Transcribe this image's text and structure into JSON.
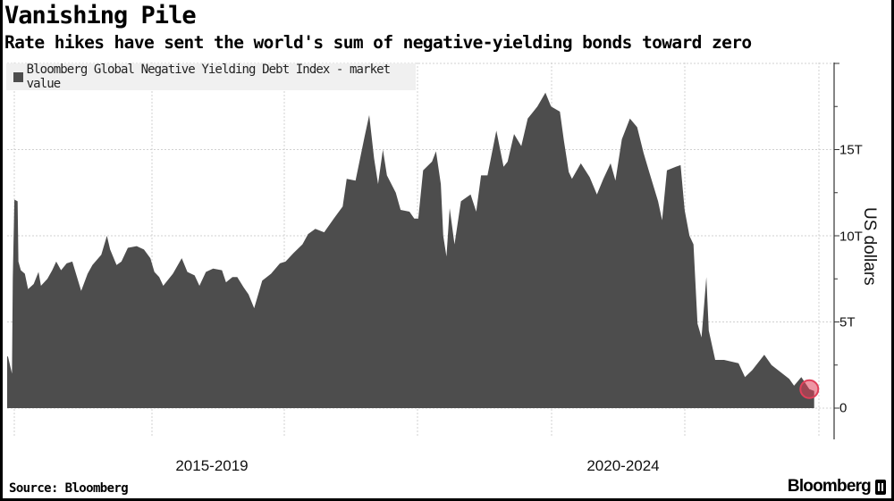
{
  "title": "Vanishing Pile",
  "subtitle": "Rate hikes have sent the world's sum of negative-yielding bonds toward zero",
  "source": "Source: Bloomberg",
  "logo_text": "Bloomberg",
  "chart_data": {
    "type": "area",
    "title": "Vanishing Pile",
    "subtitle": "Rate hikes have sent the world's sum of negative-yielding bonds toward zero",
    "ylabel": "US dollars",
    "xlabel": "",
    "x_tick_labels": [
      "2015-2019",
      "2020-2024"
    ],
    "y_ticks": [
      0,
      5,
      10,
      15
    ],
    "y_tick_labels": [
      "0",
      "5T",
      "10T",
      "15T"
    ],
    "ylim": [
      0,
      20
    ],
    "y_unit": "trillions of US dollars",
    "grid": true,
    "legend_position": "top-left",
    "colors": {
      "series": "#4d4d4d",
      "highlight": "#e0405a"
    },
    "series": [
      {
        "name": "Bloomberg Global Negative Yielding Debt Index - market value",
        "points": [
          [
            2014.0,
            3.0
          ],
          [
            2014.01,
            3.0
          ],
          [
            2014.06,
            2.0
          ],
          [
            2014.07,
            7.5
          ],
          [
            2014.09,
            12.1
          ],
          [
            2014.13,
            12.0
          ],
          [
            2014.14,
            8.5
          ],
          [
            2014.17,
            8.0
          ],
          [
            2014.22,
            7.8
          ],
          [
            2014.26,
            6.9
          ],
          [
            2014.33,
            7.2
          ],
          [
            2014.39,
            7.9
          ],
          [
            2014.42,
            7.1
          ],
          [
            2014.5,
            7.5
          ],
          [
            2014.56,
            8.0
          ],
          [
            2014.61,
            8.5
          ],
          [
            2014.67,
            8.0
          ],
          [
            2014.74,
            8.4
          ],
          [
            2014.81,
            8.5
          ],
          [
            2014.92,
            6.8
          ],
          [
            2015.0,
            7.8
          ],
          [
            2015.06,
            8.3
          ],
          [
            2015.17,
            8.9
          ],
          [
            2015.24,
            10.0
          ],
          [
            2015.28,
            9.2
          ],
          [
            2015.36,
            8.3
          ],
          [
            2015.42,
            8.5
          ],
          [
            2015.5,
            9.3
          ],
          [
            2015.61,
            9.4
          ],
          [
            2015.7,
            9.2
          ],
          [
            2015.78,
            8.7
          ],
          [
            2015.83,
            7.9
          ],
          [
            2015.89,
            7.6
          ],
          [
            2015.94,
            7.1
          ],
          [
            2016.06,
            7.8
          ],
          [
            2016.17,
            8.7
          ],
          [
            2016.24,
            7.9
          ],
          [
            2016.33,
            7.7
          ],
          [
            2016.39,
            7.1
          ],
          [
            2016.47,
            7.9
          ],
          [
            2016.56,
            8.1
          ],
          [
            2016.67,
            8.0
          ],
          [
            2016.72,
            7.3
          ],
          [
            2016.8,
            7.6
          ],
          [
            2016.86,
            7.6
          ],
          [
            2016.94,
            7.0
          ],
          [
            2017.0,
            6.6
          ],
          [
            2017.07,
            5.8
          ],
          [
            2017.17,
            7.4
          ],
          [
            2017.28,
            7.8
          ],
          [
            2017.39,
            8.4
          ],
          [
            2017.46,
            8.5
          ],
          [
            2017.56,
            9.0
          ],
          [
            2017.67,
            9.5
          ],
          [
            2017.74,
            10.1
          ],
          [
            2017.83,
            10.4
          ],
          [
            2017.94,
            10.2
          ],
          [
            2018.06,
            11.0
          ],
          [
            2018.17,
            11.7
          ],
          [
            2018.22,
            13.3
          ],
          [
            2018.33,
            13.2
          ],
          [
            2018.44,
            15.7
          ],
          [
            2018.5,
            17.0
          ],
          [
            2018.56,
            14.5
          ],
          [
            2018.61,
            13.0
          ],
          [
            2018.67,
            15.0
          ],
          [
            2018.72,
            13.5
          ],
          [
            2018.83,
            12.5
          ],
          [
            2018.89,
            11.5
          ],
          [
            2019.0,
            11.4
          ],
          [
            2019.06,
            11.0
          ],
          [
            2019.11,
            11.0
          ],
          [
            2019.17,
            13.8
          ],
          [
            2019.28,
            14.3
          ],
          [
            2019.33,
            14.9
          ],
          [
            2019.39,
            13.0
          ],
          [
            2019.42,
            10.0
          ],
          [
            2019.46,
            8.8
          ],
          [
            2019.5,
            11.6
          ],
          [
            2019.56,
            9.5
          ],
          [
            2019.64,
            12.0
          ],
          [
            2019.76,
            12.4
          ],
          [
            2019.83,
            11.4
          ],
          [
            2019.89,
            13.5
          ],
          [
            2019.97,
            13.5
          ],
          [
            2020.08,
            16.1
          ],
          [
            2020.17,
            14.0
          ],
          [
            2020.22,
            14.3
          ],
          [
            2020.3,
            15.9
          ],
          [
            2020.39,
            15.2
          ],
          [
            2020.47,
            16.8
          ],
          [
            2020.59,
            17.5
          ],
          [
            2020.69,
            18.3
          ],
          [
            2020.76,
            17.5
          ],
          [
            2020.87,
            17.2
          ],
          [
            2020.92,
            15.5
          ],
          [
            2020.98,
            13.7
          ],
          [
            2021.02,
            13.3
          ],
          [
            2021.13,
            14.2
          ],
          [
            2021.24,
            13.4
          ],
          [
            2021.33,
            12.4
          ],
          [
            2021.41,
            13.3
          ],
          [
            2021.5,
            14.2
          ],
          [
            2021.56,
            13.2
          ],
          [
            2021.64,
            15.6
          ],
          [
            2021.74,
            16.8
          ],
          [
            2021.83,
            16.3
          ],
          [
            2021.91,
            14.8
          ],
          [
            2021.98,
            13.7
          ],
          [
            2022.09,
            12.0
          ],
          [
            2022.14,
            10.9
          ],
          [
            2022.2,
            13.8
          ],
          [
            2022.31,
            14.0
          ],
          [
            2022.37,
            14.1
          ],
          [
            2022.42,
            11.5
          ],
          [
            2022.48,
            10.0
          ],
          [
            2022.53,
            9.5
          ],
          [
            2022.58,
            4.9
          ],
          [
            2022.63,
            4.1
          ],
          [
            2022.69,
            7.6
          ],
          [
            2022.72,
            4.5
          ],
          [
            2022.8,
            2.8
          ],
          [
            2022.91,
            2.8
          ],
          [
            2023.09,
            2.6
          ],
          [
            2023.17,
            1.8
          ],
          [
            2023.26,
            2.2
          ],
          [
            2023.41,
            3.1
          ],
          [
            2023.5,
            2.5
          ],
          [
            2023.61,
            2.1
          ],
          [
            2023.72,
            1.7
          ],
          [
            2023.78,
            1.3
          ],
          [
            2023.87,
            1.8
          ],
          [
            2023.97,
            1.1
          ],
          [
            2024.03,
            1.0
          ]
        ]
      }
    ],
    "highlight_point": [
      2023.97,
      1.1
    ]
  }
}
